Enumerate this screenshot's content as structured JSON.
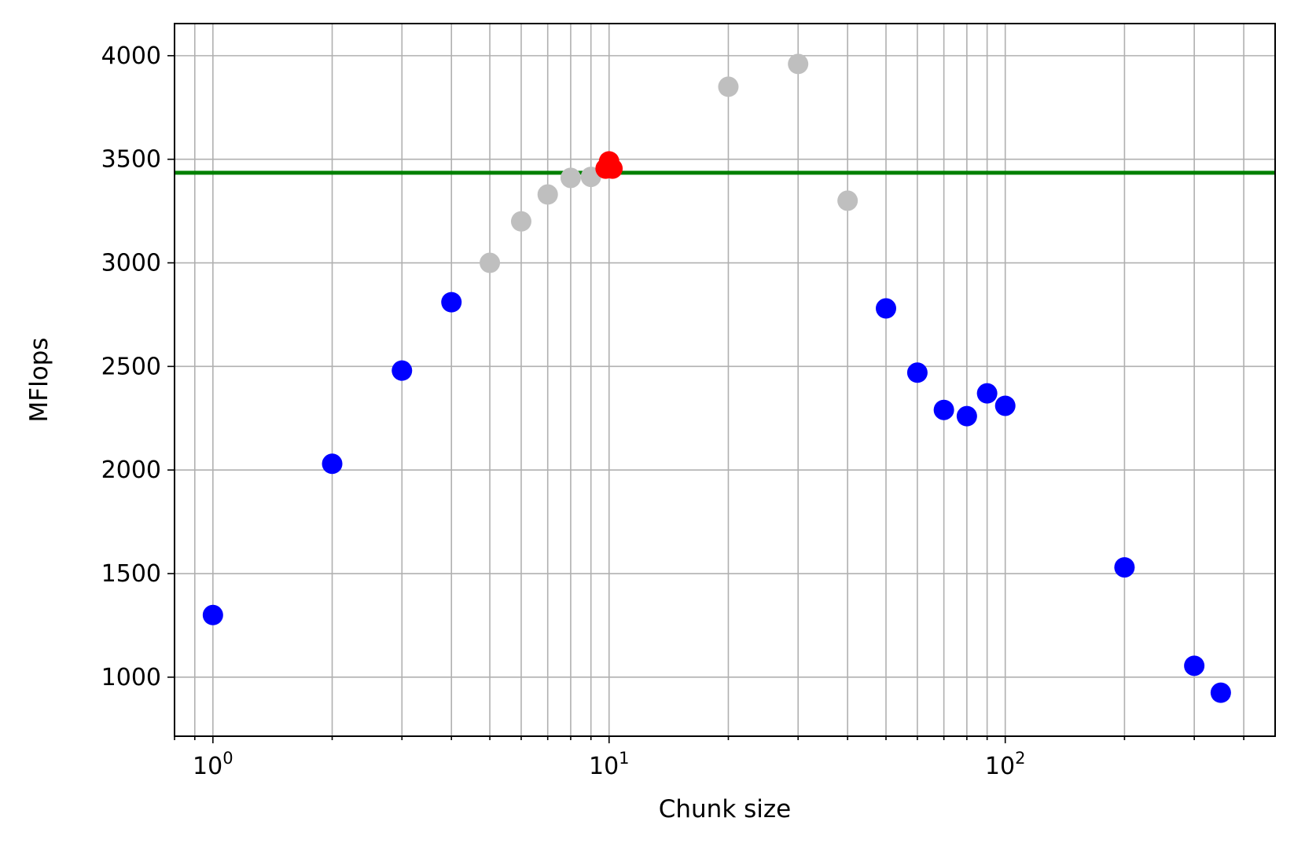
{
  "chart_data": {
    "type": "scatter",
    "title": "",
    "xlabel": "Chunk size",
    "ylabel": "MFlops",
    "xscale": "log",
    "xlim": [
      0.8,
      480
    ],
    "ylim": [
      715,
      4155
    ],
    "grid": true,
    "x_ticks": [
      {
        "base": "10",
        "exp": "0",
        "value": 1
      },
      {
        "base": "10",
        "exp": "1",
        "value": 10
      },
      {
        "base": "10",
        "exp": "2",
        "value": 100
      }
    ],
    "y_ticks": [
      "1000",
      "1500",
      "2000",
      "2500",
      "3000",
      "3500",
      "4000"
    ],
    "reference_line": {
      "y": 3435,
      "color": "#008000"
    },
    "series": [
      {
        "color": "#0000ff",
        "points": [
          {
            "x": 1,
            "y": 1300
          },
          {
            "x": 2,
            "y": 2030
          },
          {
            "x": 3,
            "y": 2480
          },
          {
            "x": 4,
            "y": 2810
          },
          {
            "x": 50,
            "y": 2780
          },
          {
            "x": 60,
            "y": 2470
          },
          {
            "x": 70,
            "y": 2290
          },
          {
            "x": 80,
            "y": 2260
          },
          {
            "x": 90,
            "y": 2370
          },
          {
            "x": 100,
            "y": 2310
          },
          {
            "x": 200,
            "y": 1530
          },
          {
            "x": 300,
            "y": 1055
          },
          {
            "x": 350,
            "y": 925
          }
        ]
      },
      {
        "color": "#bfbfbf",
        "points": [
          {
            "x": 5,
            "y": 3000
          },
          {
            "x": 6,
            "y": 3200
          },
          {
            "x": 7,
            "y": 3330
          },
          {
            "x": 8,
            "y": 3410
          },
          {
            "x": 9,
            "y": 3415
          },
          {
            "x": 20,
            "y": 3850
          },
          {
            "x": 30,
            "y": 3960
          },
          {
            "x": 40,
            "y": 3300
          }
        ]
      },
      {
        "color": "#ff0000",
        "points": [
          {
            "x": 9.8,
            "y": 3455
          },
          {
            "x": 10,
            "y": 3490
          },
          {
            "x": 10.2,
            "y": 3455
          }
        ]
      }
    ]
  }
}
